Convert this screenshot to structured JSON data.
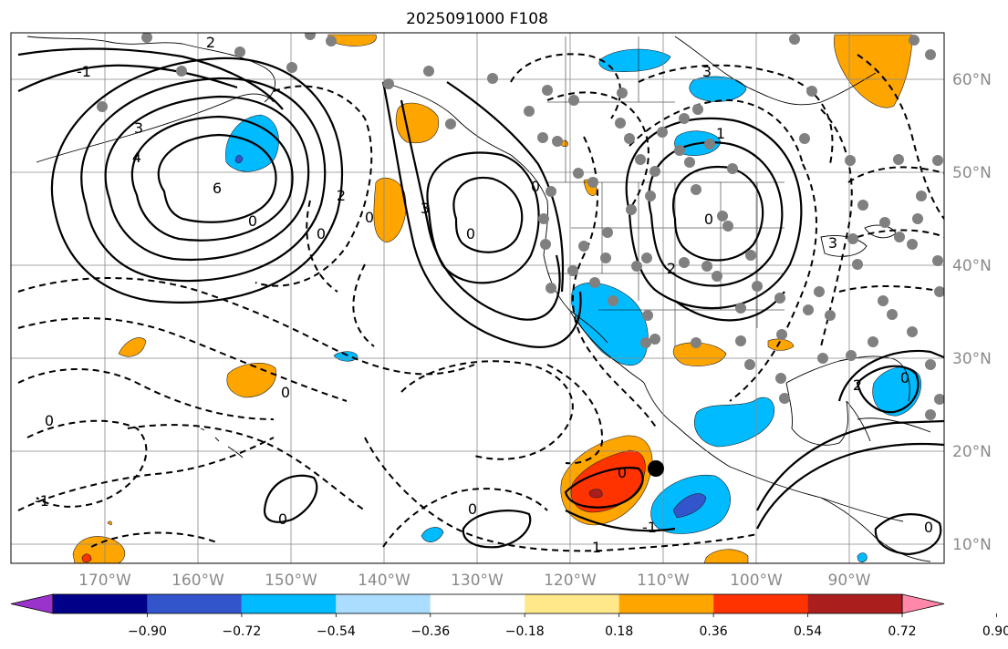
{
  "title": "2025091000 F108",
  "map": {
    "longitude_labels": [
      "170°W",
      "160°W",
      "150°W",
      "140°W",
      "130°W",
      "120°W",
      "110°W",
      "100°W",
      "90°W"
    ],
    "latitude_labels": [
      "60°N",
      "50°N",
      "40°N",
      "30°N",
      "20°N",
      "10°N"
    ],
    "contour_labels": [
      "-1",
      "2",
      "3",
      "4",
      "6",
      "0",
      "2",
      "0",
      "0",
      "3",
      "0",
      "0",
      "3",
      "0",
      "2",
      "1",
      "0",
      "0",
      "-1",
      "0",
      "0",
      "0",
      "-1",
      "1",
      "2",
      "3",
      "0",
      "0"
    ]
  },
  "colorbar": {
    "tick_labels": [
      "−0.90",
      "−0.72",
      "−0.54",
      "−0.36",
      "−0.18",
      "0.18",
      "0.36",
      "0.54",
      "0.72",
      "0.90"
    ],
    "colors": [
      "#9933cc",
      "#000088",
      "#3355cc",
      "#00bbff",
      "#aaddff",
      "#ffffff",
      "#ffe88a",
      "#ffa500",
      "#ff3300",
      "#aa1e1e",
      "#ff88aa"
    ],
    "extend": "both"
  }
}
